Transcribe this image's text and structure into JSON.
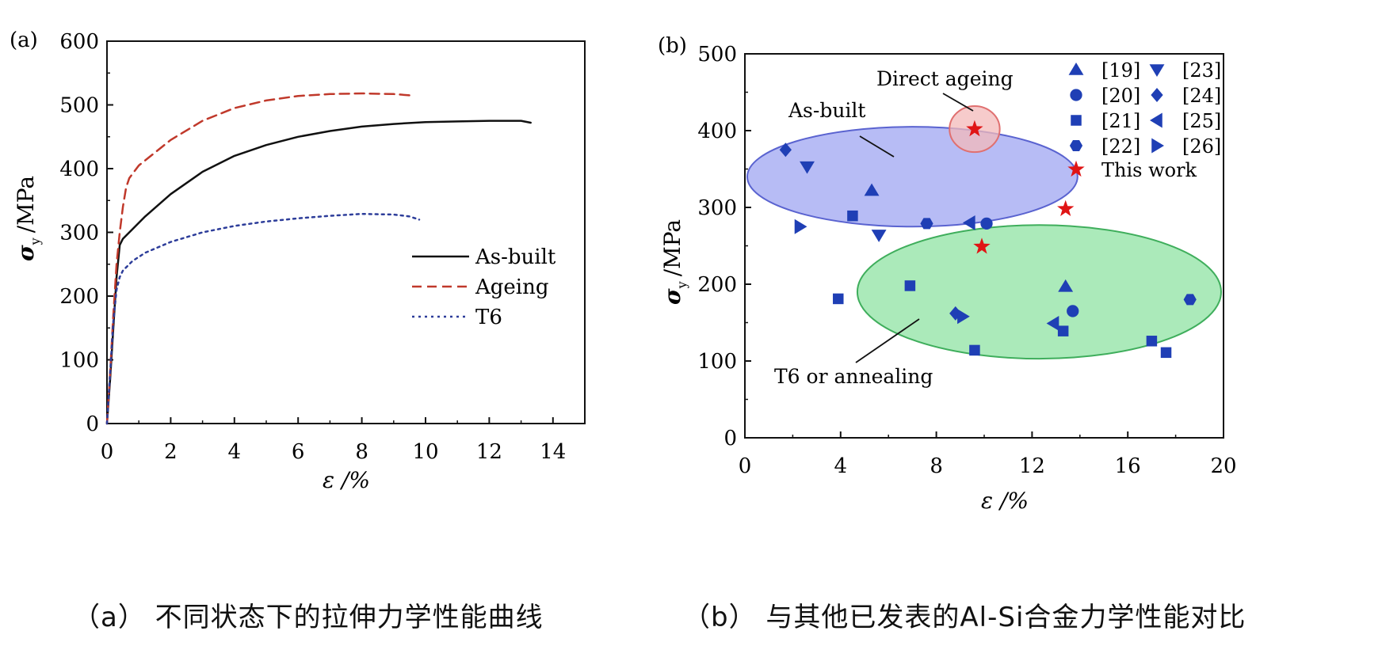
{
  "captions": {
    "a": "（a） 不同状态下的拉伸力学性能曲线",
    "b": "（b） 与其他已发表的Al-Si合金力学性能对比"
  },
  "chart_data": [
    {
      "panel_label": "(a)",
      "type": "line",
      "xlabel": "ε /%",
      "ylabel_main": "σ",
      "ylabel_sub": "y",
      "ylabel_unit": "/MPa",
      "xlim": [
        0,
        15
      ],
      "ylim": [
        0,
        600
      ],
      "xticks": [
        0,
        2,
        4,
        6,
        8,
        10,
        12,
        14
      ],
      "yticks": [
        0,
        100,
        200,
        300,
        400,
        500,
        600
      ],
      "legend_position": "right",
      "series": [
        {
          "name": "As-built",
          "color": "#111111",
          "dash": "solid",
          "x": [
            0,
            0.1,
            0.2,
            0.3,
            0.4,
            0.5,
            0.8,
            1.2,
            2,
            3,
            4,
            5,
            6,
            7,
            8,
            9,
            10,
            11,
            12,
            13,
            13.3
          ],
          "y": [
            0,
            70,
            150,
            230,
            280,
            290,
            305,
            325,
            360,
            395,
            420,
            437,
            450,
            459,
            466,
            470,
            473,
            474,
            475,
            475,
            472
          ]
        },
        {
          "name": "Ageing",
          "color": "#c0392b",
          "dash": "dashed",
          "x": [
            0,
            0.1,
            0.2,
            0.3,
            0.4,
            0.5,
            0.6,
            0.7,
            1,
            1.5,
            2,
            3,
            4,
            5,
            6,
            7,
            8,
            9,
            9.5
          ],
          "y": [
            0,
            80,
            170,
            250,
            300,
            340,
            370,
            385,
            405,
            425,
            445,
            475,
            495,
            507,
            514,
            517,
            518,
            517,
            515
          ]
        },
        {
          "name": "T6",
          "color": "#2d3d9a",
          "dash": "dotted",
          "x": [
            0,
            0.1,
            0.2,
            0.3,
            0.4,
            0.5,
            0.8,
            1.2,
            2,
            3,
            4,
            5,
            6,
            7,
            8,
            9,
            9.5,
            9.8
          ],
          "y": [
            0,
            80,
            160,
            210,
            230,
            240,
            255,
            268,
            285,
            300,
            310,
            317,
            322,
            326,
            329,
            328,
            325,
            320
          ]
        }
      ]
    },
    {
      "panel_label": "(b)",
      "type": "scatter",
      "xlabel": "ε /%",
      "ylabel_main": "σ",
      "ylabel_sub": "y",
      "ylabel_unit": "/MPa",
      "xlim": [
        0,
        20
      ],
      "ylim": [
        0,
        500
      ],
      "xticks": [
        0,
        4,
        8,
        12,
        16,
        20
      ],
      "yticks": [
        0,
        100,
        200,
        300,
        400,
        500
      ],
      "legend_position": "top-right",
      "marker_color": "#1f3fb5",
      "regions": [
        {
          "label": "As-built",
          "fill": "#9fa5f2",
          "edge": "#5a63d0",
          "cx": 7,
          "cy": 340,
          "rx": 6.9,
          "ry": 65
        },
        {
          "label": "T6 or annealing",
          "fill": "#8fe3a3",
          "edge": "#3fae5c",
          "cx": 12.3,
          "cy": 190,
          "rx": 7.6,
          "ry": 87
        },
        {
          "label": "Direct ageing",
          "fill": "#f3b9b9",
          "edge": "#e07070",
          "cx": 9.6,
          "cy": 402,
          "rx": 1.05,
          "ry": 30
        }
      ],
      "series": [
        {
          "name": "[19]",
          "marker": "triangle-up",
          "points": [
            [
              5.3,
              322
            ],
            [
              13.4,
              197
            ]
          ]
        },
        {
          "name": "[20]",
          "marker": "circle",
          "points": [
            [
              10.1,
              279
            ],
            [
              13.7,
              165
            ]
          ]
        },
        {
          "name": "[21]",
          "marker": "square",
          "points": [
            [
              4.5,
              289
            ],
            [
              3.9,
              181
            ],
            [
              6.9,
              198
            ],
            [
              9.6,
              114
            ],
            [
              13.3,
              139
            ],
            [
              17,
              126
            ],
            [
              17.6,
              111
            ]
          ]
        },
        {
          "name": "[22]",
          "marker": "hexagon",
          "points": [
            [
              7.6,
              279
            ],
            [
              18.6,
              180
            ]
          ]
        },
        {
          "name": "[23]",
          "marker": "triangle-down",
          "points": [
            [
              2.6,
              353
            ],
            [
              5.6,
              264
            ]
          ]
        },
        {
          "name": "[24]",
          "marker": "diamond",
          "points": [
            [
              1.7,
              375
            ],
            [
              8.8,
              162
            ]
          ]
        },
        {
          "name": "[25]",
          "marker": "triangle-left",
          "points": [
            [
              9.4,
              280
            ],
            [
              12.9,
              149
            ]
          ]
        },
        {
          "name": "[26]",
          "marker": "triangle-right",
          "points": [
            [
              2.3,
              275
            ],
            [
              9.1,
              158
            ]
          ]
        },
        {
          "name": "This work",
          "marker": "star",
          "color": "#e01515",
          "points": [
            [
              9.6,
              402
            ],
            [
              13.4,
              298
            ],
            [
              9.9,
              249
            ]
          ]
        }
      ]
    }
  ]
}
